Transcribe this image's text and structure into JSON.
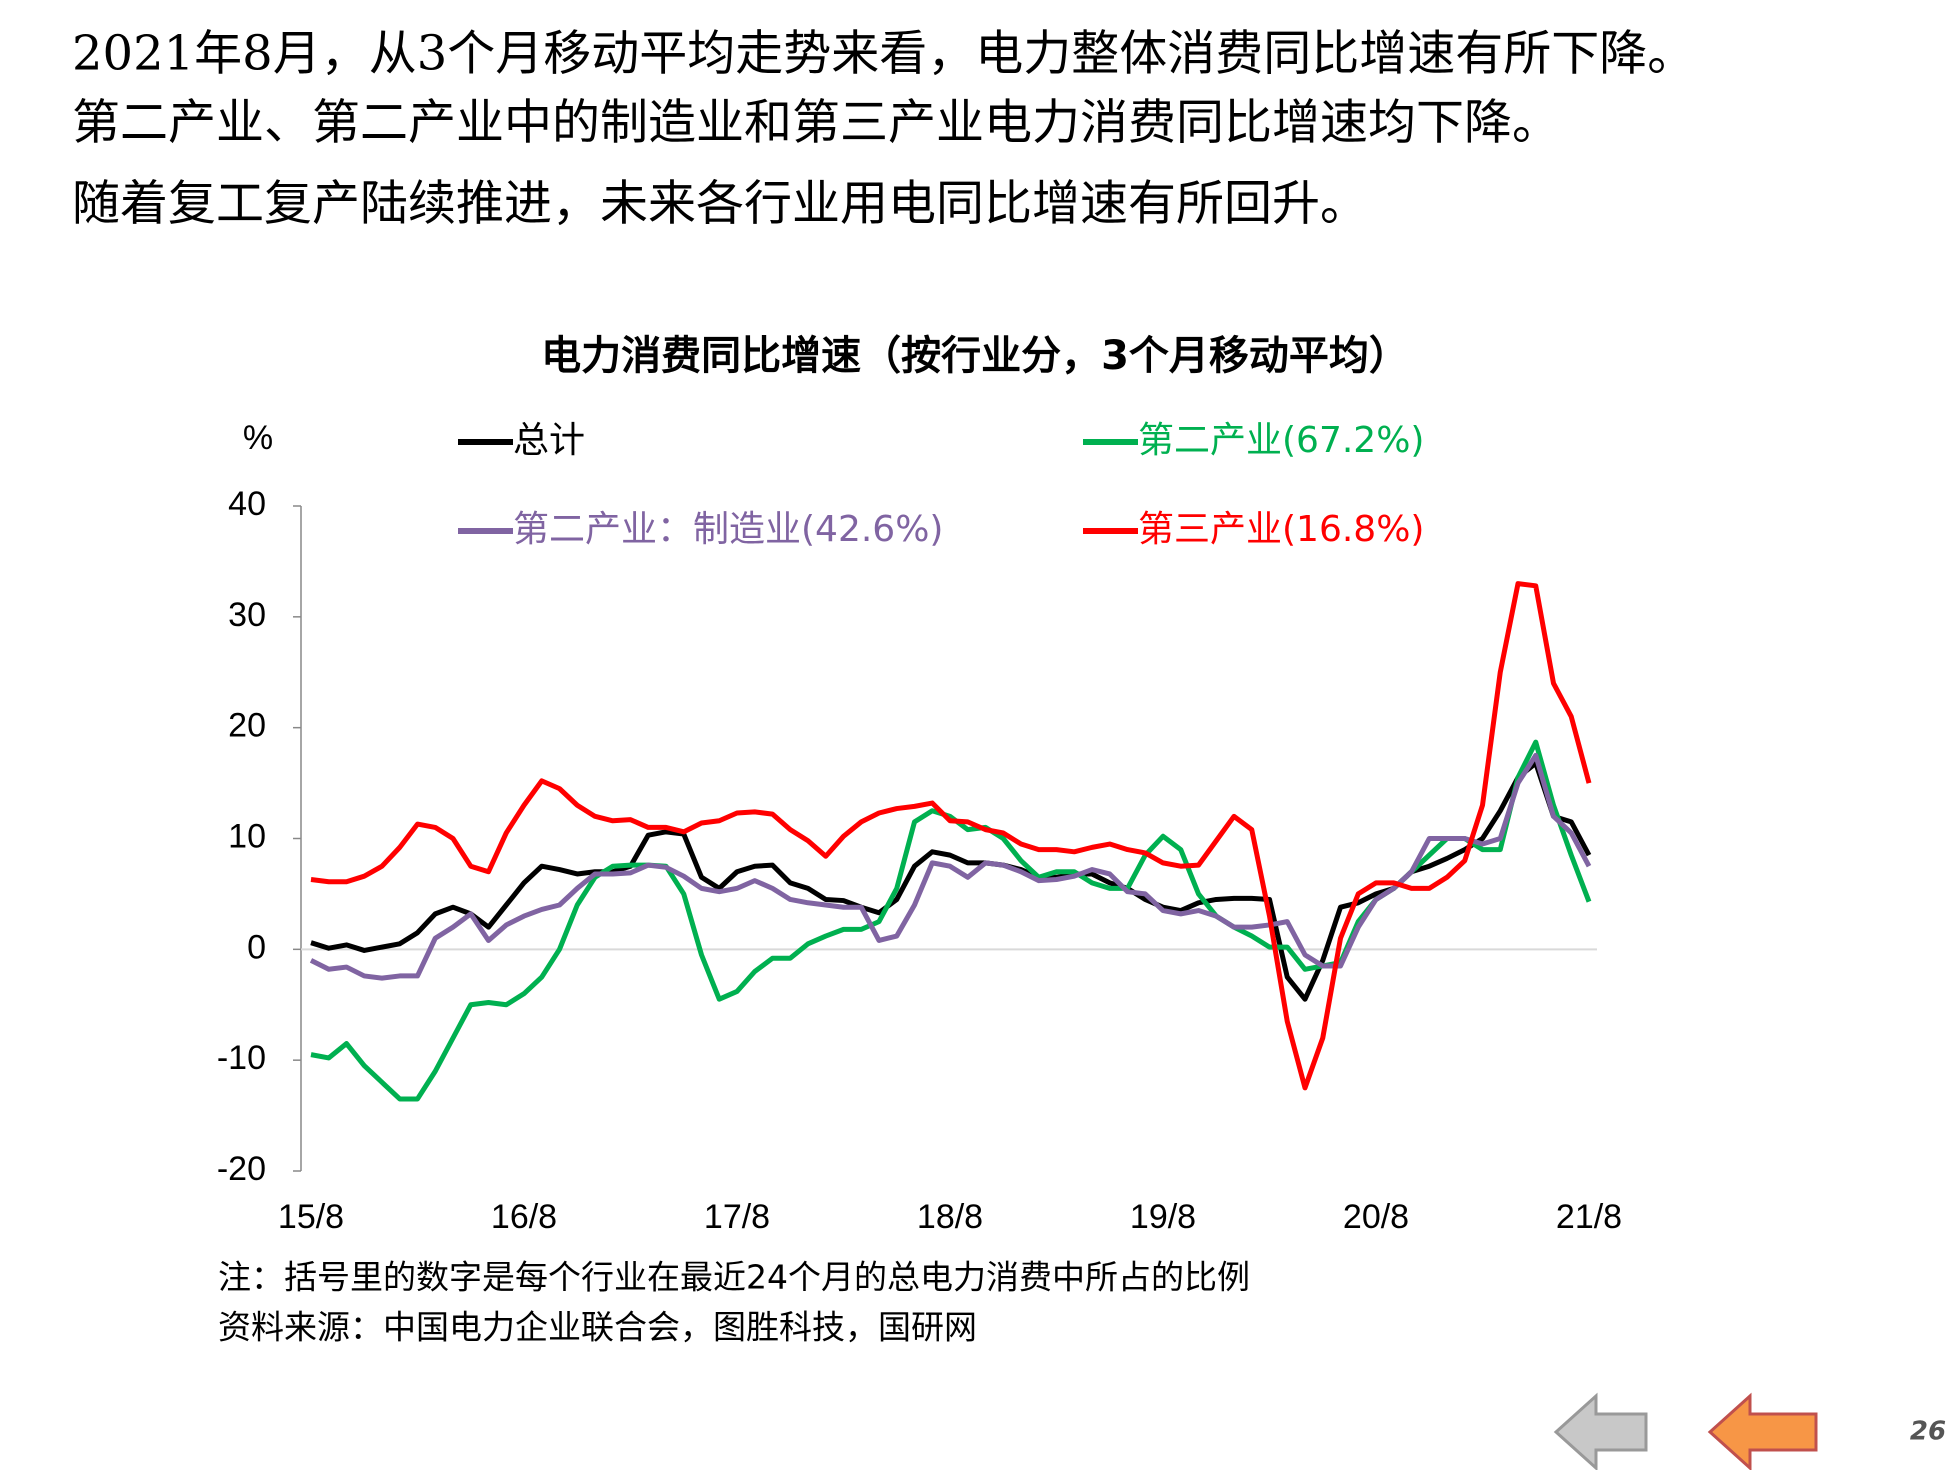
{
  "text": {
    "lines": [
      "2021年8月，从3个月移动平均走势来看，电力整体消费同比增速有所下降。",
      "第二产业、第二产业中的制造业和第三产业电力消费同比增速均下降。",
      "随着复工复产陆续推进，未来各行业用电同比增速有所回升。"
    ]
  },
  "chart_data": {
    "type": "line",
    "title": "电力消费同比增速（按行业分，3个月移动平均）",
    "y_label": "%",
    "categories": [
      "15/8",
      null,
      null,
      null,
      null,
      null,
      null,
      null,
      null,
      null,
      null,
      null,
      "16/8",
      null,
      null,
      null,
      null,
      null,
      null,
      null,
      null,
      null,
      null,
      null,
      "17/8",
      null,
      null,
      null,
      null,
      null,
      null,
      null,
      null,
      null,
      null,
      null,
      "18/8",
      null,
      null,
      null,
      null,
      null,
      null,
      null,
      null,
      null,
      null,
      null,
      "19/8",
      null,
      null,
      null,
      null,
      null,
      null,
      null,
      null,
      null,
      null,
      null,
      "20/8",
      null,
      null,
      null,
      null,
      null,
      null,
      null,
      null,
      null,
      null,
      null,
      "21/8"
    ],
    "series": [
      {
        "name": "总计",
        "color": "#000000",
        "values": [
          0.6,
          0.1,
          0.4,
          -0.1,
          0.2,
          0.5,
          1.5,
          3.2,
          3.8,
          3.2,
          2.0,
          4.0,
          6.0,
          7.5,
          7.2,
          6.8,
          7.0,
          7.0,
          7.5,
          10.3,
          10.6,
          10.4,
          6.5,
          5.5,
          7.0,
          7.5,
          7.6,
          6.0,
          5.5,
          4.5,
          4.4,
          3.8,
          3.3,
          4.5,
          7.5,
          8.8,
          8.5,
          7.8,
          7.8,
          7.6,
          7.2,
          6.5,
          6.5,
          6.8,
          6.8,
          6.0,
          5.5,
          4.5,
          3.8,
          3.5,
          4.2,
          4.5,
          4.6,
          4.6,
          4.5,
          -2.5,
          -4.5,
          -1.0,
          3.8,
          4.2,
          5.0,
          5.5,
          7.0,
          7.5,
          8.2,
          9.0,
          10,
          12.5,
          15.5,
          16.8,
          12,
          11.5,
          8.5
        ]
      },
      {
        "name": "第二产业(67.2%)",
        "color": "#00b050",
        "values": [
          -9.5,
          -9.8,
          -8.5,
          -10.5,
          -12,
          -13.5,
          -13.5,
          -11,
          -8,
          -5,
          -4.8,
          -5,
          -4,
          -2.5,
          0,
          4,
          6.5,
          7.5,
          7.6,
          7.6,
          7.5,
          5,
          -0.5,
          -4.5,
          -3.8,
          -2,
          -0.8,
          -0.8,
          0.5,
          1.2,
          1.8,
          1.8,
          2.5,
          5.5,
          11.5,
          12.5,
          12,
          10.8,
          11,
          10,
          8,
          6.5,
          7,
          7,
          6,
          5.5,
          5.5,
          8.5,
          10.2,
          9,
          5,
          3,
          2,
          1.2,
          0.2,
          0.2,
          -1.8,
          -1.5,
          -1.2,
          2.5,
          4.5,
          5.5,
          7,
          8.5,
          10,
          10,
          9,
          9,
          15.5,
          18.7,
          13,
          8.5,
          4.3
        ]
      },
      {
        "name": "第二产业：制造业(42.6%)",
        "color": "#8064a2",
        "values": [
          -1,
          -1.8,
          -1.6,
          -2.4,
          -2.6,
          -2.4,
          -2.4,
          1,
          2,
          3.2,
          0.8,
          2.2,
          3,
          3.6,
          4,
          5.5,
          6.8,
          6.8,
          6.9,
          7.6,
          7.4,
          6.6,
          5.5,
          5.2,
          5.5,
          6.2,
          5.5,
          4.5,
          4.2,
          4,
          3.8,
          3.8,
          0.8,
          1.2,
          4,
          7.8,
          7.5,
          6.5,
          7.8,
          7.6,
          7,
          6.2,
          6.3,
          6.6,
          7.2,
          6.8,
          5.2,
          5,
          3.5,
          3.2,
          3.5,
          3,
          2,
          2,
          2.2,
          2.5,
          -0.5,
          -1.5,
          -1.5,
          2,
          4.5,
          5.5,
          7,
          10,
          10,
          10,
          9.5,
          10,
          15,
          17.5,
          12,
          10.5,
          7.5
        ]
      },
      {
        "name": "第三产业(16.8%)",
        "color": "#ff0000",
        "values": [
          6.3,
          6.1,
          6.1,
          6.6,
          7.5,
          9.2,
          11.3,
          11,
          10,
          7.5,
          7,
          10.5,
          13,
          15.2,
          14.5,
          13,
          12,
          11.6,
          11.7,
          11,
          11,
          10.6,
          11.4,
          11.6,
          12.3,
          12.4,
          12.2,
          10.8,
          9.8,
          8.4,
          10.2,
          11.5,
          12.3,
          12.7,
          12.9,
          13.2,
          11.6,
          11.5,
          10.8,
          10.5,
          9.5,
          9,
          9,
          8.8,
          9.2,
          9.5,
          9,
          8.7,
          7.8,
          7.5,
          7.6,
          9.8,
          12,
          10.8,
          3,
          -6.5,
          -12.5,
          -8,
          1,
          5,
          6,
          6,
          5.5,
          5.5,
          6.5,
          8,
          13,
          25,
          33,
          32.8,
          24,
          21,
          15
        ]
      }
    ],
    "ylim": [
      -20,
      40
    ],
    "yticks": [
      -20,
      -10,
      0,
      10,
      20,
      30,
      40
    ],
    "zero_line": true
  },
  "notes": [
    "注：括号里的数字是每个行业在最近24个月的总电力消费中所占的比例",
    "资料来源：中国电力企业联合会，图胜科技，国研网"
  ],
  "page_number": "26"
}
